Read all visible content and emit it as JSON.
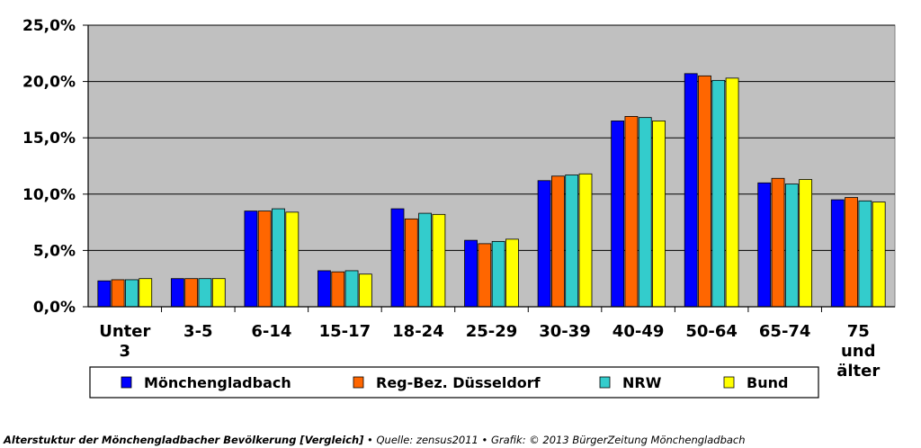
{
  "chart_data": {
    "type": "bar",
    "title": "",
    "xlabel": "",
    "ylabel": "",
    "ylim": [
      0,
      25
    ],
    "y_ticks": [
      "0,0%",
      "5,0%",
      "10,0%",
      "15,0%",
      "20,0%",
      "25,0%"
    ],
    "grid": true,
    "legend_position": "bottom",
    "background_color": "#c0c0c0",
    "categories": [
      [
        "Unter",
        "3"
      ],
      [
        "3-5"
      ],
      [
        "6-14"
      ],
      [
        "15-17"
      ],
      [
        "18-24"
      ],
      [
        "25-29"
      ],
      [
        "30-39"
      ],
      [
        "40-49"
      ],
      [
        "50-64"
      ],
      [
        "65-74"
      ],
      [
        "75",
        "und",
        "älter"
      ]
    ],
    "series": [
      {
        "name": "Mönchengladbach",
        "color": "#0000ff",
        "values": [
          2.3,
          2.5,
          8.5,
          3.2,
          8.7,
          5.9,
          11.2,
          16.5,
          20.7,
          11.0,
          9.5
        ]
      },
      {
        "name": "Reg-Bez. Düsseldorf",
        "color": "#ff6600",
        "values": [
          2.4,
          2.5,
          8.5,
          3.1,
          7.8,
          5.6,
          11.6,
          16.9,
          20.5,
          11.4,
          9.7
        ]
      },
      {
        "name": "NRW",
        "color": "#33cccc",
        "values": [
          2.4,
          2.5,
          8.7,
          3.2,
          8.3,
          5.8,
          11.7,
          16.8,
          20.1,
          10.9,
          9.4
        ]
      },
      {
        "name": "Bund",
        "color": "#ffff00",
        "values": [
          2.5,
          2.5,
          8.4,
          2.9,
          8.2,
          6.0,
          11.8,
          16.5,
          20.3,
          11.3,
          9.3
        ]
      }
    ]
  },
  "caption": {
    "title": "Alterstuktur der Mönchengladbacher Bevölkerung [Vergleich]",
    "rest": " • Quelle: zensus2011 • Grafik: © 2013 BürgerZeitung Mönchengladbach"
  }
}
